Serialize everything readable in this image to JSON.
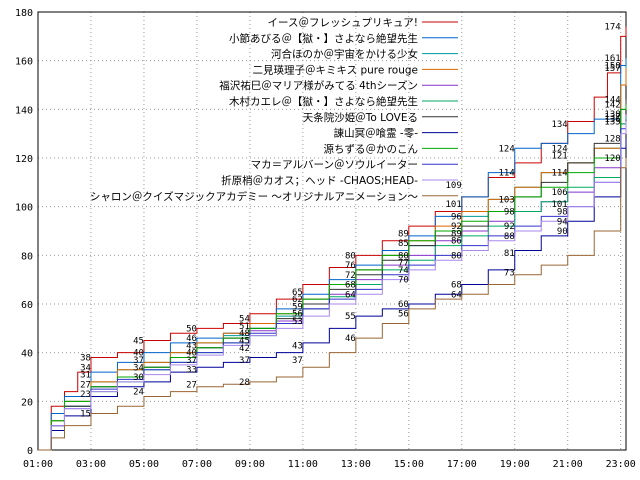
{
  "chart_data": {
    "type": "line",
    "x_ticks": [
      "01:00",
      "03:00",
      "05:00",
      "07:00",
      "09:00",
      "11:00",
      "13:00",
      "15:00",
      "17:00",
      "19:00",
      "21:00",
      "23:00"
    ],
    "y_ticks": [
      0,
      20,
      40,
      60,
      80,
      100,
      120,
      140,
      160,
      180
    ],
    "xlim": [
      0,
      22.2
    ],
    "ylim": [
      0,
      180
    ],
    "grid": "dotted",
    "legend_position": "top-right",
    "series": [
      {
        "name": "イース＠フレッシュプリキュア!",
        "color": "#cc0000",
        "x": [
          0,
          0.5,
          1,
          1.5,
          2,
          3,
          4,
          5,
          6,
          7,
          8,
          9,
          10,
          11,
          12,
          13,
          14,
          15,
          16,
          17,
          18,
          19,
          20,
          21,
          21.5,
          22,
          22.2
        ],
        "y": [
          0,
          18,
          24,
          32,
          38,
          40,
          45,
          48,
          50,
          52,
          56,
          62,
          68,
          75,
          80,
          86,
          92,
          98,
          104,
          112,
          118,
          126,
          135,
          145,
          155,
          170,
          174
        ]
      },
      {
        "name": "小節あびる＠【獄・】さよなら絶望先生",
        "color": "#0066cc",
        "x": [
          0,
          0.5,
          1,
          2,
          3,
          4,
          5,
          6,
          7,
          8,
          9,
          10,
          11,
          12,
          13,
          14,
          15,
          16,
          17,
          18,
          19,
          20,
          21,
          22,
          22.2
        ],
        "y": [
          0,
          15,
          22,
          32,
          36,
          40,
          44,
          46,
          48,
          52,
          58,
          64,
          70,
          76,
          82,
          88,
          96,
          104,
          114,
          124,
          126,
          130,
          136,
          158,
          161
        ]
      },
      {
        "name": "河合ほのか＠宇宙をかける少女",
        "color": "#009999",
        "x": [
          0,
          0.5,
          1,
          2,
          3,
          4,
          5,
          6,
          7,
          8,
          9,
          10,
          11,
          12,
          13,
          14,
          15,
          16,
          17,
          18,
          19,
          20,
          21,
          22,
          22.2
        ],
        "y": [
          0,
          12,
          20,
          28,
          33,
          36,
          40,
          44,
          47,
          50,
          55,
          62,
          68,
          74,
          80,
          84,
          90,
          96,
          103,
          108,
          114,
          118,
          124,
          150,
          158
        ]
      },
      {
        "name": "二見瑛理子＠キミキス pure rouge",
        "color": "#dd6600",
        "x": [
          0,
          0.5,
          1,
          2,
          3,
          4,
          5,
          6,
          7,
          8,
          9,
          10,
          11,
          12,
          13,
          14,
          15,
          16,
          17,
          18,
          19,
          20,
          21,
          22,
          22.2
        ],
        "y": [
          0,
          12,
          20,
          28,
          33,
          36,
          40,
          44,
          48,
          52,
          56,
          62,
          68,
          74,
          80,
          86,
          92,
          98,
          103,
          108,
          114,
          118,
          124,
          150,
          157
        ]
      },
      {
        "name": "福沢祐巳＠マリア様がみてる 4thシーズン",
        "color": "#8833cc",
        "x": [
          0,
          0.5,
          1,
          2,
          3,
          4,
          5,
          6,
          7,
          8,
          9,
          10,
          11,
          12,
          13,
          14,
          15,
          16,
          17,
          18,
          19,
          20,
          21,
          22,
          22.2
        ],
        "y": [
          0,
          10,
          18,
          26,
          30,
          34,
          38,
          42,
          46,
          49,
          53,
          58,
          64,
          70,
          76,
          80,
          86,
          90,
          94,
          98,
          102,
          106,
          116,
          134,
          138
        ]
      },
      {
        "name": "木村カエレ＠【獄・】さよなら絶望先生",
        "color": "#00aa66",
        "x": [
          0,
          0.5,
          1,
          2,
          3,
          4,
          5,
          6,
          7,
          8,
          9,
          10,
          11,
          12,
          13,
          14,
          15,
          16,
          17,
          18,
          19,
          20,
          21,
          22,
          22.2
        ],
        "y": [
          0,
          10,
          18,
          24,
          28,
          33,
          36,
          40,
          44,
          47,
          52,
          58,
          63,
          68,
          74,
          78,
          84,
          88,
          92,
          98,
          102,
          108,
          112,
          134,
          137
        ]
      },
      {
        "name": "天条院沙姫＠To LOVEる",
        "color": "#333333",
        "x": [
          0,
          0.5,
          1,
          2,
          3,
          4,
          5,
          6,
          7,
          8,
          9,
          10,
          11,
          12,
          13,
          14,
          15,
          16,
          17,
          18,
          19,
          20,
          21,
          22,
          22.2
        ],
        "y": [
          0,
          10,
          18,
          26,
          30,
          34,
          38,
          42,
          46,
          50,
          54,
          60,
          66,
          72,
          78,
          84,
          88,
          92,
          98,
          104,
          110,
          118,
          126,
          140,
          144
        ]
      },
      {
        "name": "諌山冥＠喰霊 -零-",
        "color": "#000099",
        "x": [
          0,
          0.5,
          1,
          2,
          3,
          4,
          5,
          6,
          7,
          8,
          9,
          10,
          11,
          12,
          13,
          14,
          15,
          16,
          17,
          18,
          19,
          20,
          21,
          22,
          22.2
        ],
        "y": [
          0,
          8,
          14,
          22,
          26,
          28,
          32,
          34,
          36,
          38,
          40,
          44,
          50,
          55,
          58,
          60,
          64,
          68,
          74,
          82,
          88,
          94,
          104,
          124,
          128
        ]
      },
      {
        "name": "源ちずる＠かのこん",
        "color": "#00aa00",
        "x": [
          0,
          0.5,
          1,
          2,
          3,
          4,
          5,
          6,
          7,
          8,
          9,
          10,
          11,
          12,
          13,
          14,
          15,
          16,
          17,
          18,
          19,
          20,
          21,
          22,
          22.2
        ],
        "y": [
          0,
          12,
          20,
          26,
          30,
          34,
          38,
          42,
          46,
          50,
          56,
          62,
          68,
          74,
          80,
          86,
          90,
          94,
          98,
          104,
          108,
          114,
          120,
          140,
          142
        ]
      },
      {
        "name": "マカ＝アルバーン＠ソウルイーター",
        "color": "#3333cc",
        "x": [
          0,
          0.5,
          1,
          2,
          3,
          4,
          5,
          6,
          7,
          8,
          9,
          10,
          11,
          12,
          13,
          14,
          15,
          16,
          17,
          18,
          19,
          20,
          21,
          22,
          22.2
        ],
        "y": [
          0,
          10,
          17,
          25,
          29,
          33,
          36,
          40,
          44,
          48,
          52,
          58,
          62,
          66,
          72,
          76,
          80,
          84,
          88,
          92,
          96,
          100,
          110,
          132,
          136
        ]
      },
      {
        "name": "折原梢＠カオス；ヘッド -CHAOS;HEAD-",
        "color": "#aa88ee",
        "x": [
          0,
          0.5,
          1,
          2,
          3,
          4,
          5,
          6,
          7,
          8,
          9,
          10,
          11,
          12,
          13,
          14,
          15,
          16,
          17,
          18,
          19,
          20,
          21,
          22,
          22.2
        ],
        "y": [
          0,
          10,
          17,
          24,
          28,
          31,
          35,
          39,
          43,
          47,
          50,
          55,
          60,
          64,
          70,
          74,
          78,
          82,
          86,
          90,
          94,
          100,
          110,
          130,
          135
        ]
      },
      {
        "name": "シャロン＠クイズマジックアカデミー 〜オリジナルアニメーション〜",
        "color": "#996633",
        "x": [
          0,
          0.5,
          1,
          2,
          3,
          4,
          5,
          6,
          7,
          8,
          9,
          10,
          11,
          12,
          13,
          14,
          15,
          16,
          17,
          18,
          19,
          20,
          21,
          22,
          22.2
        ],
        "y": [
          0,
          5,
          10,
          15,
          18,
          22,
          24,
          26,
          27,
          28,
          30,
          34,
          40,
          46,
          52,
          58,
          62,
          64,
          68,
          72,
          76,
          80,
          90,
          116,
          120
        ]
      }
    ],
    "annotations": [
      {
        "x": 22.0,
        "y": 174,
        "text": "174"
      },
      {
        "x": 22.0,
        "y": 161,
        "text": "161"
      },
      {
        "x": 22.0,
        "y": 158,
        "text": "158"
      },
      {
        "x": 22.0,
        "y": 157,
        "text": "157"
      },
      {
        "x": 22.0,
        "y": 144,
        "text": "144"
      },
      {
        "x": 22.0,
        "y": 142,
        "text": "142"
      },
      {
        "x": 22.0,
        "y": 138,
        "text": "138"
      },
      {
        "x": 22.0,
        "y": 137,
        "text": "137"
      },
      {
        "x": 22.0,
        "y": 136,
        "text": "136"
      },
      {
        "x": 22.0,
        "y": 135,
        "text": "135"
      },
      {
        "x": 22.0,
        "y": 128,
        "text": "128"
      },
      {
        "x": 22.0,
        "y": 120,
        "text": "120"
      },
      {
        "x": 20.0,
        "y": 134,
        "text": "134"
      },
      {
        "x": 20.0,
        "y": 124,
        "text": "124"
      },
      {
        "x": 20.0,
        "y": 121,
        "text": "121"
      },
      {
        "x": 20.0,
        "y": 114,
        "text": "114"
      },
      {
        "x": 20.0,
        "y": 106,
        "text": "106"
      },
      {
        "x": 20.0,
        "y": 101,
        "text": "101"
      },
      {
        "x": 20.0,
        "y": 98,
        "text": "98"
      },
      {
        "x": 20.0,
        "y": 94,
        "text": "94"
      },
      {
        "x": 20.0,
        "y": 90,
        "text": "90"
      },
      {
        "x": 18.0,
        "y": 124,
        "text": "124"
      },
      {
        "x": 18.0,
        "y": 114,
        "text": "114"
      },
      {
        "x": 18.0,
        "y": 103,
        "text": "103"
      },
      {
        "x": 18.0,
        "y": 98,
        "text": "98"
      },
      {
        "x": 18.0,
        "y": 92,
        "text": "92"
      },
      {
        "x": 18.0,
        "y": 88,
        "text": "88"
      },
      {
        "x": 18.0,
        "y": 81,
        "text": "81"
      },
      {
        "x": 18.0,
        "y": 73,
        "text": "73"
      },
      {
        "x": 16.0,
        "y": 109,
        "text": "109"
      },
      {
        "x": 16.0,
        "y": 101,
        "text": "101"
      },
      {
        "x": 16.0,
        "y": 96,
        "text": "96"
      },
      {
        "x": 16.0,
        "y": 92,
        "text": "92"
      },
      {
        "x": 16.0,
        "y": 89,
        "text": "89"
      },
      {
        "x": 16.0,
        "y": 86,
        "text": "86"
      },
      {
        "x": 16.0,
        "y": 80,
        "text": "80"
      },
      {
        "x": 16.0,
        "y": 68,
        "text": "68"
      },
      {
        "x": 16.0,
        "y": 64,
        "text": "64"
      },
      {
        "x": 14.0,
        "y": 89,
        "text": "89"
      },
      {
        "x": 14.0,
        "y": 85,
        "text": "85"
      },
      {
        "x": 14.0,
        "y": 80,
        "text": "80"
      },
      {
        "x": 14.0,
        "y": 77,
        "text": "77"
      },
      {
        "x": 14.0,
        "y": 74,
        "text": "74"
      },
      {
        "x": 14.0,
        "y": 70,
        "text": "70"
      },
      {
        "x": 14.0,
        "y": 60,
        "text": "60"
      },
      {
        "x": 14.0,
        "y": 56,
        "text": "56"
      },
      {
        "x": 12.0,
        "y": 80,
        "text": "80"
      },
      {
        "x": 12.0,
        "y": 76,
        "text": "76"
      },
      {
        "x": 12.0,
        "y": 72,
        "text": "72"
      },
      {
        "x": 12.0,
        "y": 68,
        "text": "68"
      },
      {
        "x": 12.0,
        "y": 64,
        "text": "64"
      },
      {
        "x": 12.0,
        "y": 55,
        "text": "55"
      },
      {
        "x": 12.0,
        "y": 46,
        "text": "46"
      },
      {
        "x": 10.0,
        "y": 65,
        "text": "65"
      },
      {
        "x": 10.0,
        "y": 62,
        "text": "62"
      },
      {
        "x": 10.0,
        "y": 59,
        "text": "59"
      },
      {
        "x": 10.0,
        "y": 56,
        "text": "56"
      },
      {
        "x": 10.0,
        "y": 53,
        "text": "53"
      },
      {
        "x": 10.0,
        "y": 43,
        "text": "43"
      },
      {
        "x": 10.0,
        "y": 37,
        "text": "37"
      },
      {
        "x": 8.0,
        "y": 54,
        "text": "54"
      },
      {
        "x": 8.0,
        "y": 51,
        "text": "51"
      },
      {
        "x": 8.0,
        "y": 48,
        "text": "48"
      },
      {
        "x": 8.0,
        "y": 45,
        "text": "45"
      },
      {
        "x": 8.0,
        "y": 42,
        "text": "42"
      },
      {
        "x": 8.0,
        "y": 37,
        "text": "37"
      },
      {
        "x": 8.0,
        "y": 28,
        "text": "28"
      },
      {
        "x": 6.0,
        "y": 50,
        "text": "50"
      },
      {
        "x": 6.0,
        "y": 46,
        "text": "46"
      },
      {
        "x": 6.0,
        "y": 43,
        "text": "43"
      },
      {
        "x": 6.0,
        "y": 40,
        "text": "40"
      },
      {
        "x": 6.0,
        "y": 37,
        "text": "37"
      },
      {
        "x": 6.0,
        "y": 33,
        "text": "33"
      },
      {
        "x": 6.0,
        "y": 27,
        "text": "27"
      },
      {
        "x": 4.0,
        "y": 45,
        "text": "45"
      },
      {
        "x": 4.0,
        "y": 40,
        "text": "40"
      },
      {
        "x": 4.0,
        "y": 37,
        "text": "37"
      },
      {
        "x": 4.0,
        "y": 34,
        "text": "34"
      },
      {
        "x": 4.0,
        "y": 30,
        "text": "30"
      },
      {
        "x": 4.0,
        "y": 24,
        "text": "24"
      },
      {
        "x": 2.0,
        "y": 38,
        "text": "38"
      },
      {
        "x": 2.0,
        "y": 34,
        "text": "34"
      },
      {
        "x": 2.0,
        "y": 31,
        "text": "31"
      },
      {
        "x": 2.0,
        "y": 27,
        "text": "27"
      },
      {
        "x": 2.0,
        "y": 23,
        "text": "23"
      },
      {
        "x": 2.0,
        "y": 15,
        "text": "15"
      }
    ]
  }
}
